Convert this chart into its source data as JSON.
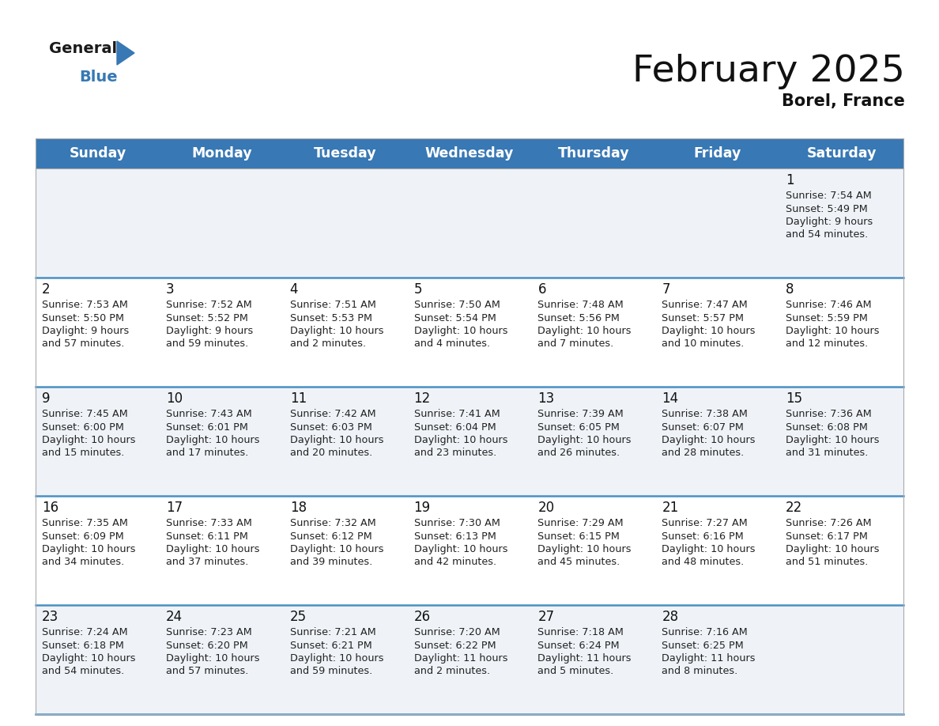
{
  "title": "February 2025",
  "subtitle": "Borel, France",
  "header_color": "#3878b4",
  "header_text_color": "#ffffff",
  "cell_bg_row0": "#eff3f8",
  "cell_bg_row1": "#ffffff",
  "sep_line_color": "#4a90c4",
  "outer_line_color": "#cccccc",
  "day_headers": [
    "Sunday",
    "Monday",
    "Tuesday",
    "Wednesday",
    "Thursday",
    "Friday",
    "Saturday"
  ],
  "title_fontsize": 34,
  "subtitle_fontsize": 15,
  "header_fontsize": 12.5,
  "day_num_fontsize": 12,
  "info_fontsize": 9.2,
  "logo_general_fontsize": 14,
  "logo_blue_fontsize": 14,
  "calendar_data": [
    [
      null,
      null,
      null,
      null,
      null,
      null,
      {
        "day": "1",
        "sunrise": "7:54 AM",
        "sunset": "5:49 PM",
        "daylight_h": "9 hours",
        "daylight_m": "and 54 minutes."
      }
    ],
    [
      {
        "day": "2",
        "sunrise": "7:53 AM",
        "sunset": "5:50 PM",
        "daylight_h": "9 hours",
        "daylight_m": "and 57 minutes."
      },
      {
        "day": "3",
        "sunrise": "7:52 AM",
        "sunset": "5:52 PM",
        "daylight_h": "9 hours",
        "daylight_m": "and 59 minutes."
      },
      {
        "day": "4",
        "sunrise": "7:51 AM",
        "sunset": "5:53 PM",
        "daylight_h": "10 hours",
        "daylight_m": "and 2 minutes."
      },
      {
        "day": "5",
        "sunrise": "7:50 AM",
        "sunset": "5:54 PM",
        "daylight_h": "10 hours",
        "daylight_m": "and 4 minutes."
      },
      {
        "day": "6",
        "sunrise": "7:48 AM",
        "sunset": "5:56 PM",
        "daylight_h": "10 hours",
        "daylight_m": "and 7 minutes."
      },
      {
        "day": "7",
        "sunrise": "7:47 AM",
        "sunset": "5:57 PM",
        "daylight_h": "10 hours",
        "daylight_m": "and 10 minutes."
      },
      {
        "day": "8",
        "sunrise": "7:46 AM",
        "sunset": "5:59 PM",
        "daylight_h": "10 hours",
        "daylight_m": "and 12 minutes."
      }
    ],
    [
      {
        "day": "9",
        "sunrise": "7:45 AM",
        "sunset": "6:00 PM",
        "daylight_h": "10 hours",
        "daylight_m": "and 15 minutes."
      },
      {
        "day": "10",
        "sunrise": "7:43 AM",
        "sunset": "6:01 PM",
        "daylight_h": "10 hours",
        "daylight_m": "and 17 minutes."
      },
      {
        "day": "11",
        "sunrise": "7:42 AM",
        "sunset": "6:03 PM",
        "daylight_h": "10 hours",
        "daylight_m": "and 20 minutes."
      },
      {
        "day": "12",
        "sunrise": "7:41 AM",
        "sunset": "6:04 PM",
        "daylight_h": "10 hours",
        "daylight_m": "and 23 minutes."
      },
      {
        "day": "13",
        "sunrise": "7:39 AM",
        "sunset": "6:05 PM",
        "daylight_h": "10 hours",
        "daylight_m": "and 26 minutes."
      },
      {
        "day": "14",
        "sunrise": "7:38 AM",
        "sunset": "6:07 PM",
        "daylight_h": "10 hours",
        "daylight_m": "and 28 minutes."
      },
      {
        "day": "15",
        "sunrise": "7:36 AM",
        "sunset": "6:08 PM",
        "daylight_h": "10 hours",
        "daylight_m": "and 31 minutes."
      }
    ],
    [
      {
        "day": "16",
        "sunrise": "7:35 AM",
        "sunset": "6:09 PM",
        "daylight_h": "10 hours",
        "daylight_m": "and 34 minutes."
      },
      {
        "day": "17",
        "sunrise": "7:33 AM",
        "sunset": "6:11 PM",
        "daylight_h": "10 hours",
        "daylight_m": "and 37 minutes."
      },
      {
        "day": "18",
        "sunrise": "7:32 AM",
        "sunset": "6:12 PM",
        "daylight_h": "10 hours",
        "daylight_m": "and 39 minutes."
      },
      {
        "day": "19",
        "sunrise": "7:30 AM",
        "sunset": "6:13 PM",
        "daylight_h": "10 hours",
        "daylight_m": "and 42 minutes."
      },
      {
        "day": "20",
        "sunrise": "7:29 AM",
        "sunset": "6:15 PM",
        "daylight_h": "10 hours",
        "daylight_m": "and 45 minutes."
      },
      {
        "day": "21",
        "sunrise": "7:27 AM",
        "sunset": "6:16 PM",
        "daylight_h": "10 hours",
        "daylight_m": "and 48 minutes."
      },
      {
        "day": "22",
        "sunrise": "7:26 AM",
        "sunset": "6:17 PM",
        "daylight_h": "10 hours",
        "daylight_m": "and 51 minutes."
      }
    ],
    [
      {
        "day": "23",
        "sunrise": "7:24 AM",
        "sunset": "6:18 PM",
        "daylight_h": "10 hours",
        "daylight_m": "and 54 minutes."
      },
      {
        "day": "24",
        "sunrise": "7:23 AM",
        "sunset": "6:20 PM",
        "daylight_h": "10 hours",
        "daylight_m": "and 57 minutes."
      },
      {
        "day": "25",
        "sunrise": "7:21 AM",
        "sunset": "6:21 PM",
        "daylight_h": "10 hours",
        "daylight_m": "and 59 minutes."
      },
      {
        "day": "26",
        "sunrise": "7:20 AM",
        "sunset": "6:22 PM",
        "daylight_h": "11 hours",
        "daylight_m": "and 2 minutes."
      },
      {
        "day": "27",
        "sunrise": "7:18 AM",
        "sunset": "6:24 PM",
        "daylight_h": "11 hours",
        "daylight_m": "and 5 minutes."
      },
      {
        "day": "28",
        "sunrise": "7:16 AM",
        "sunset": "6:25 PM",
        "daylight_h": "11 hours",
        "daylight_m": "and 8 minutes."
      },
      null
    ]
  ]
}
